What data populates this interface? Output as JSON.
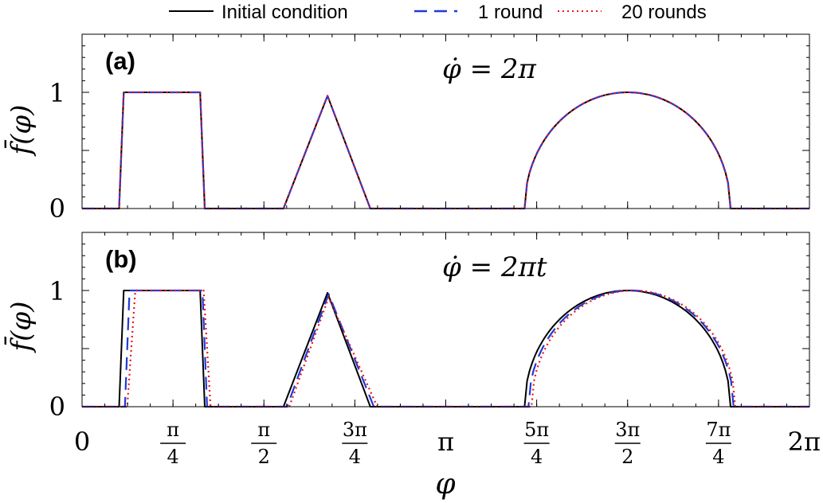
{
  "chart_data": [
    {
      "type": "line",
      "panel_label": "(a)",
      "annotation": "φ̇ = 2π",
      "ylabel": "f̄(φ)",
      "xlabel": "",
      "xlim": [
        0,
        6.2832
      ],
      "ylim": [
        0,
        1.5
      ],
      "yticks": [
        {
          "value": 0,
          "label": "0"
        },
        {
          "value": 1,
          "label": "1"
        }
      ],
      "grid": false,
      "legend_position": "top-outside",
      "series": [
        {
          "name": "Initial condition",
          "color": "#000000",
          "style": "solid",
          "shift": 0,
          "spread": 0,
          "x": [
            0,
            0.32,
            0.36,
            1.02,
            1.06,
            1.74,
            2.12,
            2.49,
            3.24,
            6.05,
            6.2832
          ],
          "y": [
            0,
            0,
            1,
            1,
            0,
            0,
            0.97,
            0,
            0,
            0,
            0
          ]
        },
        {
          "name": "1 round",
          "color": "#1f3bd6",
          "style": "dashed",
          "shift": 0,
          "spread": 0,
          "x": [
            0,
            0.32,
            0.36,
            1.02,
            1.06,
            1.74,
            2.12,
            2.49,
            3.24,
            6.05,
            6.2832
          ],
          "y": [
            0,
            0,
            1,
            1,
            0,
            0,
            0.97,
            0,
            0,
            0,
            0
          ]
        },
        {
          "name": "20 rounds",
          "color": "#e8141e",
          "style": "dotted",
          "shift": 0,
          "spread": 0,
          "x": [
            0,
            0.32,
            0.36,
            1.02,
            1.06,
            1.74,
            2.12,
            2.49,
            3.24,
            6.05,
            6.2832
          ],
          "y": [
            0,
            0,
            1,
            1,
            0,
            0,
            0.97,
            0,
            0,
            0,
            0
          ]
        }
      ],
      "semicircle": {
        "center": 4.712,
        "half_width": 0.89,
        "height": 1
      }
    },
    {
      "type": "line",
      "panel_label": "(b)",
      "annotation": "φ̇ = 2πt",
      "ylabel": "f̄(φ)",
      "xlabel": "φ",
      "xlim": [
        0,
        6.2832
      ],
      "ylim": [
        0,
        1.5
      ],
      "yticks": [
        {
          "value": 0,
          "label": "0"
        },
        {
          "value": 1,
          "label": "1"
        }
      ],
      "xticks": [
        {
          "value": 0,
          "label": "0"
        },
        {
          "value": 0.7854,
          "num": "π",
          "den": "4"
        },
        {
          "value": 1.5708,
          "num": "π",
          "den": "2"
        },
        {
          "value": 2.3562,
          "num": "3π",
          "den": "4"
        },
        {
          "value": 3.1416,
          "label": "π"
        },
        {
          "value": 3.927,
          "num": "5π",
          "den": "4"
        },
        {
          "value": 4.7124,
          "num": "3π",
          "den": "2"
        },
        {
          "value": 5.4978,
          "num": "7π",
          "den": "4"
        },
        {
          "value": 6.2832,
          "label": "2π"
        }
      ],
      "grid": false,
      "series": [
        {
          "name": "Initial condition",
          "color": "#000000",
          "style": "solid",
          "shift": 0,
          "spread": 0,
          "x": [
            0,
            0.32,
            0.36,
            1.02,
            1.06,
            1.74,
            2.12,
            2.49,
            3.24,
            6.05,
            6.2832
          ],
          "y": [
            0,
            0,
            1,
            1,
            0,
            0,
            0.98,
            0,
            0,
            0,
            0
          ]
        },
        {
          "name": "1 round",
          "color": "#1f3bd6",
          "style": "dashed",
          "shift": 0.03,
          "spread": 0.04,
          "x": [
            0,
            0.37,
            0.41,
            1.04,
            1.08,
            1.77,
            2.13,
            2.52,
            3.27,
            6.05,
            6.2832
          ],
          "y": [
            0,
            0,
            1,
            1,
            0,
            0,
            0.97,
            0,
            0,
            0,
            0
          ]
        },
        {
          "name": "20 rounds",
          "color": "#e8141e",
          "style": "dotted",
          "shift": 0.05,
          "spread": 0.1,
          "x": [
            0,
            0.39,
            0.46,
            1.05,
            1.11,
            1.79,
            2.13,
            2.55,
            3.31,
            6.05,
            6.2832
          ],
          "y": [
            0,
            0,
            1,
            1,
            0,
            0,
            0.94,
            0,
            0,
            0,
            0
          ]
        }
      ],
      "semicircle": {
        "center": 4.712,
        "half_width": 0.89,
        "height": 1
      }
    }
  ]
}
